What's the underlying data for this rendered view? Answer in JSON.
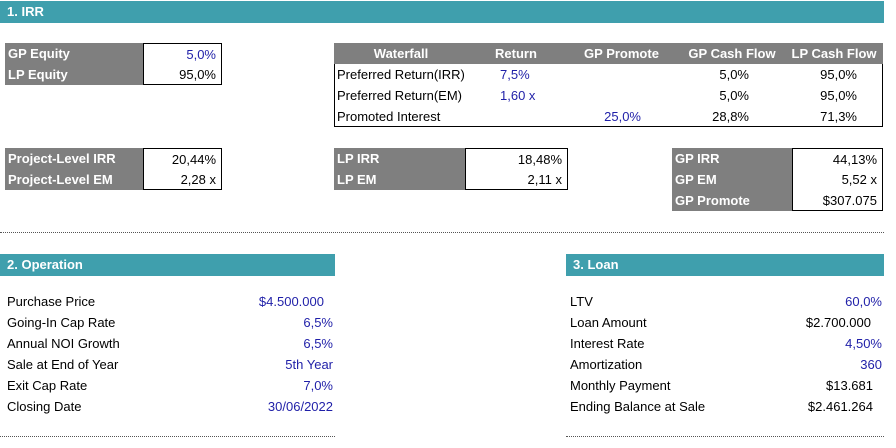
{
  "irr_section": {
    "title": "1. IRR",
    "equity": [
      {
        "label": "GP Equity",
        "value": "5,0%"
      },
      {
        "label": "LP Equity",
        "value": "95,0%"
      }
    ],
    "waterfall": {
      "headers": [
        "Waterfall",
        "Return",
        "GP Promote",
        "GP Cash Flow",
        "LP Cash Flow"
      ],
      "rows": [
        {
          "label": "Preferred Return(IRR)",
          "return": "7,5%",
          "promote": "",
          "gp_cf": "5,0%",
          "lp_cf": "95,0%"
        },
        {
          "label": "Preferred Return(EM)",
          "return": "1,60 x",
          "promote": "",
          "gp_cf": "5,0%",
          "lp_cf": "95,0%"
        },
        {
          "label": "Promoted Interest",
          "return": "",
          "promote": "25,0%",
          "gp_cf": "28,8%",
          "lp_cf": "71,3%"
        }
      ]
    },
    "project_level": [
      {
        "label": "Project-Level IRR",
        "value": "20,44%"
      },
      {
        "label": "Project-Level EM",
        "value": "2,28 x"
      }
    ],
    "lp_results": [
      {
        "label": "LP IRR",
        "value": "18,48%"
      },
      {
        "label": "LP EM",
        "value": "2,11 x"
      }
    ],
    "gp_results": [
      {
        "label": "GP IRR",
        "value": "44,13%"
      },
      {
        "label": "GP EM",
        "value": "5,52 x"
      },
      {
        "label": "GP Promote",
        "value": "$307.075"
      }
    ]
  },
  "operation": {
    "title": "2. Operation",
    "rows": [
      {
        "label": "Purchase Price",
        "value": "$4.500.000"
      },
      {
        "label": "Going-In Cap Rate",
        "value": "6,5%"
      },
      {
        "label": "Annual NOI Growth",
        "value": "6,5%"
      },
      {
        "label": "Sale at End of Year",
        "value": "5th Year"
      },
      {
        "label": "Exit Cap Rate",
        "value": "7,0%"
      },
      {
        "label": "Closing Date",
        "value": "30/06/2022"
      }
    ]
  },
  "loan": {
    "title": "3. Loan",
    "rows": [
      {
        "label": "LTV",
        "value": "60,0%",
        "input": true
      },
      {
        "label": "Loan Amount",
        "value": "$2.700.000",
        "input": false
      },
      {
        "label": "Interest Rate",
        "value": "4,50%",
        "input": true
      },
      {
        "label": "Amortization",
        "value": "360",
        "input": true
      },
      {
        "label": "Monthly Payment",
        "value": "$13.681",
        "input": false
      },
      {
        "label": "Ending Balance at Sale",
        "value": "$2.461.264",
        "input": false
      }
    ]
  },
  "colors": {
    "section_header": "#3f9fad",
    "label_fill": "#7f7f7f",
    "input_text": "#1f1fa8"
  }
}
